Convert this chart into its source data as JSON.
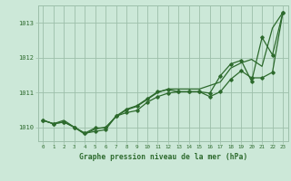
{
  "x": [
    0,
    1,
    2,
    3,
    4,
    5,
    6,
    7,
    8,
    9,
    10,
    11,
    12,
    13,
    14,
    15,
    16,
    17,
    18,
    19,
    20,
    21,
    22,
    23
  ],
  "line1": [
    1010.2,
    1010.1,
    1010.2,
    1010.0,
    1009.8,
    1009.95,
    1010.0,
    1010.3,
    1010.5,
    1010.6,
    1010.8,
    1011.0,
    1011.1,
    1011.1,
    1011.1,
    1011.1,
    1011.2,
    1011.3,
    1011.7,
    1011.85,
    1011.95,
    1011.75,
    1012.85,
    1013.3
  ],
  "line2": [
    1010.2,
    1010.1,
    1010.15,
    1010.0,
    1009.83,
    1009.88,
    1009.93,
    1010.32,
    1010.52,
    1010.62,
    1010.82,
    1011.02,
    1011.08,
    1011.02,
    1011.02,
    1011.02,
    1010.98,
    1011.48,
    1011.82,
    1011.92,
    1011.32,
    1012.58,
    1012.08,
    1013.3
  ],
  "line3": [
    1010.2,
    1010.1,
    1010.15,
    1010.0,
    1009.83,
    1009.98,
    1009.98,
    1010.32,
    1010.42,
    1010.48,
    1010.72,
    1010.88,
    1010.98,
    1011.02,
    1011.02,
    1011.02,
    1010.88,
    1011.02,
    1011.38,
    1011.62,
    1011.42,
    1011.42,
    1011.58,
    1013.3
  ],
  "line_color": "#2d6a2d",
  "bg_color": "#cce8d8",
  "grid_color": "#9dbfaa",
  "xlabel": "Graphe pression niveau de la mer (hPa)",
  "yticks": [
    1010,
    1011,
    1012,
    1013
  ],
  "xticks": [
    0,
    1,
    2,
    3,
    4,
    5,
    6,
    7,
    8,
    9,
    10,
    11,
    12,
    13,
    14,
    15,
    16,
    17,
    18,
    19,
    20,
    21,
    22,
    23
  ],
  "ylim": [
    1009.6,
    1013.5
  ],
  "xlim": [
    -0.5,
    23.5
  ]
}
